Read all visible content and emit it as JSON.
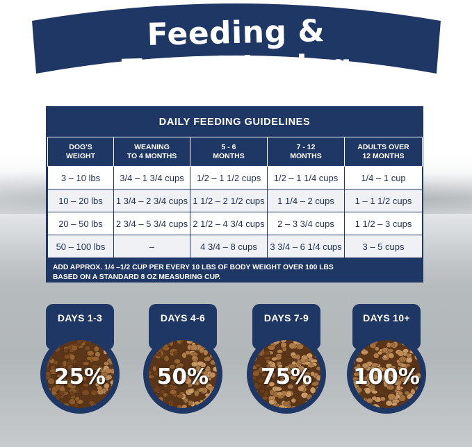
{
  "header": {
    "title": "Feeding & Transitioning"
  },
  "colors": {
    "navy": "#1f3765",
    "kibble_old": "#8b5a2b",
    "kibble_new": "#a87a4c"
  },
  "table": {
    "title": "DAILY FEEDING GUIDELINES",
    "headers": [
      [
        "DOG'S",
        "WEIGHT"
      ],
      [
        "WEANING",
        "TO 4 MONTHS"
      ],
      [
        "5 - 6",
        "MONTHS"
      ],
      [
        "7 - 12",
        "MONTHS"
      ],
      [
        "ADULTS OVER",
        "12 MONTHS"
      ]
    ],
    "rows": [
      [
        "3 – 10 lbs",
        "3/4 – 1 3/4 cups",
        "1/2 – 1 1/2 cups",
        "1/2 – 1 1/4 cups",
        "1/4 – 1 cup"
      ],
      [
        "10 – 20 lbs",
        "1 3/4 – 2 3/4 cups",
        "1 1/2 – 2 1/2 cups",
        "1 1/4 – 2 cups",
        "1 – 1 1/2 cups"
      ],
      [
        "20 – 50 lbs",
        "2 3/4 – 5 3/4 cups",
        "2 1/2 – 4 3/4 cups",
        "2 – 3 3/4 cups",
        "1 1/2 – 3 cups"
      ],
      [
        "50 – 100 lbs",
        "–",
        "4 3/4 – 8 cups",
        "3 3/4 – 6 1/4 cups",
        "3 – 5 cups"
      ]
    ],
    "note_line1": "ADD APPROX. 1/4 –1/2 CUP PER EVERY 10 LBS OF BODY WEIGHT OVER 100 LBS",
    "note_line2": "BASED ON A STANDARD 8 OZ MEASURING CUP."
  },
  "transition": [
    {
      "label": "DAYS 1-3",
      "percent": "25%",
      "new_fraction": 0.25
    },
    {
      "label": "DAYS 4-6",
      "percent": "50%",
      "new_fraction": 0.5
    },
    {
      "label": "DAYS 7-9",
      "percent": "75%",
      "new_fraction": 0.75
    },
    {
      "label": "DAYS 10+",
      "percent": "100%",
      "new_fraction": 1.0
    }
  ]
}
